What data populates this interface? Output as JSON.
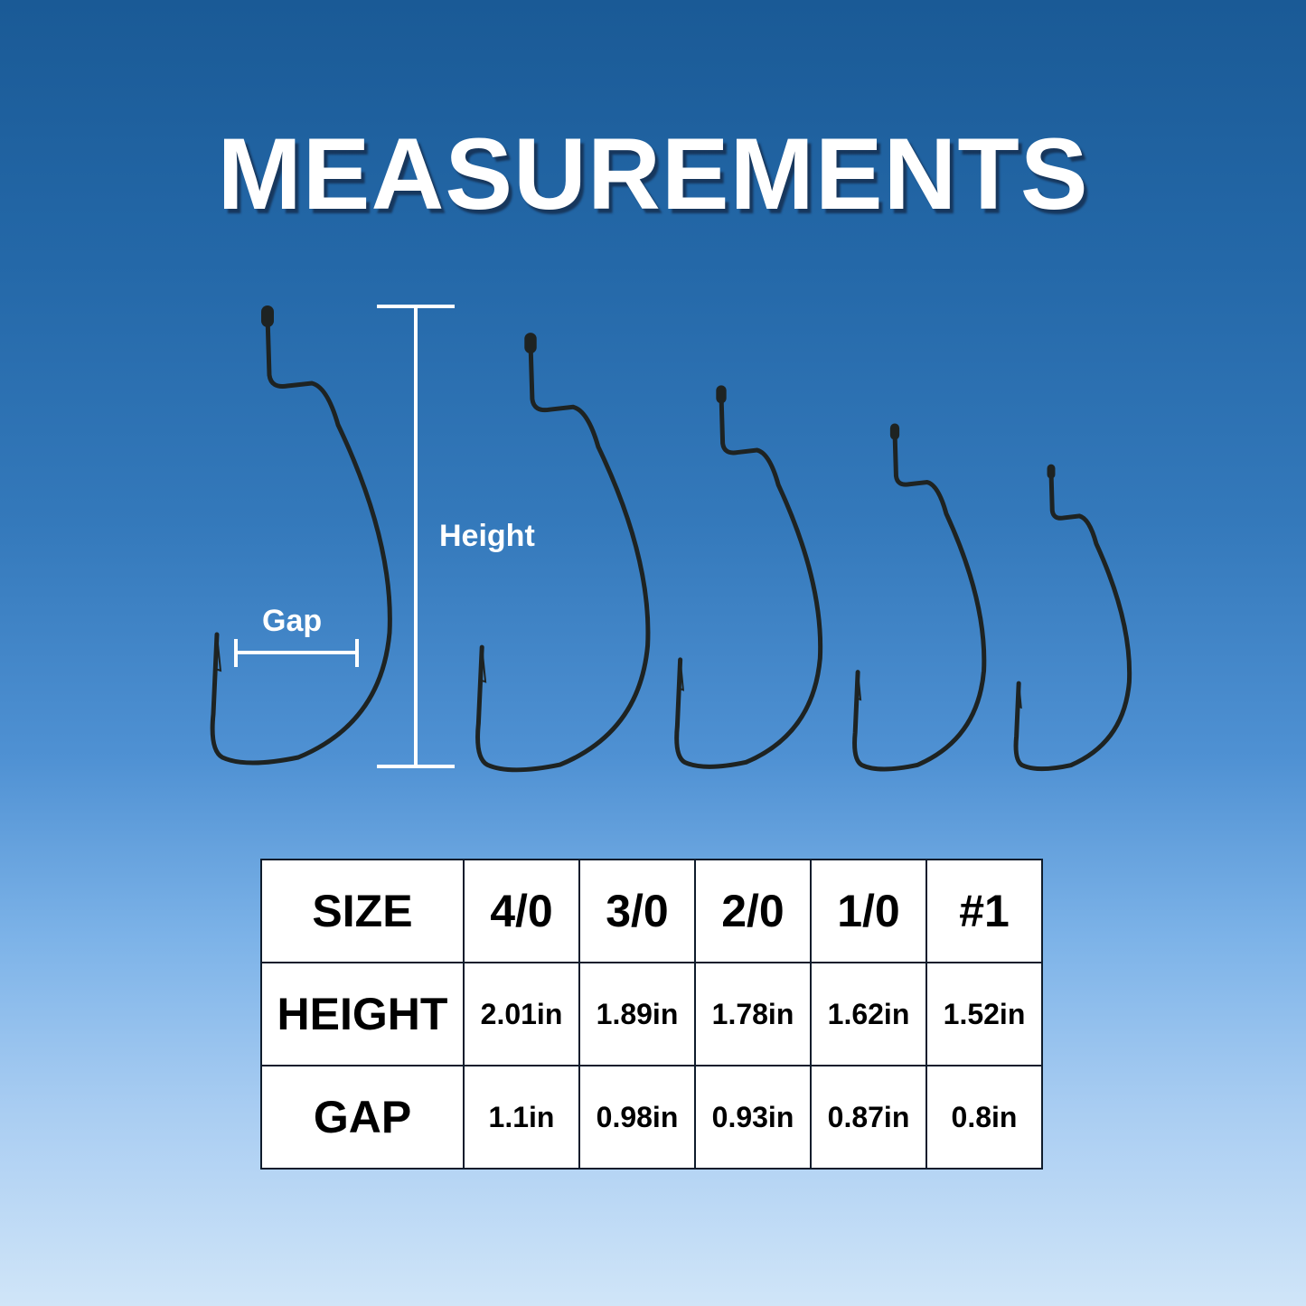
{
  "title": "MEASUREMENTS",
  "labels": {
    "height": "Height",
    "gap": "Gap"
  },
  "colors": {
    "hook": "#1e2322",
    "line": "#ffffff",
    "table_border": "#0f1c2c"
  },
  "table": {
    "row_headers": [
      "SIZE",
      "HEIGHT",
      "GAP"
    ],
    "sizes": [
      "4/0",
      "3/0",
      "2/0",
      "1/0",
      "#1"
    ],
    "heights": [
      "2.01in",
      "1.89in",
      "1.78in",
      "1.62in",
      "1.52in"
    ],
    "gaps": [
      "1.1in",
      "0.98in",
      "0.93in",
      "0.87in",
      "0.8in"
    ]
  }
}
